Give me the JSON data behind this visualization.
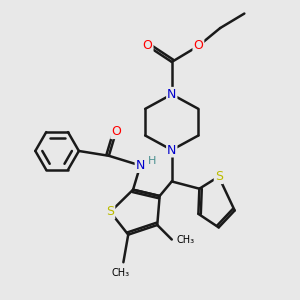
{
  "background_color": "#e8e8e8",
  "atom_colors": {
    "C": "#000000",
    "N": "#0000cc",
    "O": "#ff0000",
    "S": "#bbbb00",
    "H": "#4a9090"
  },
  "bond_color": "#1a1a1a",
  "bond_width": 1.8,
  "figsize": [
    3.0,
    3.0
  ],
  "dpi": 100
}
